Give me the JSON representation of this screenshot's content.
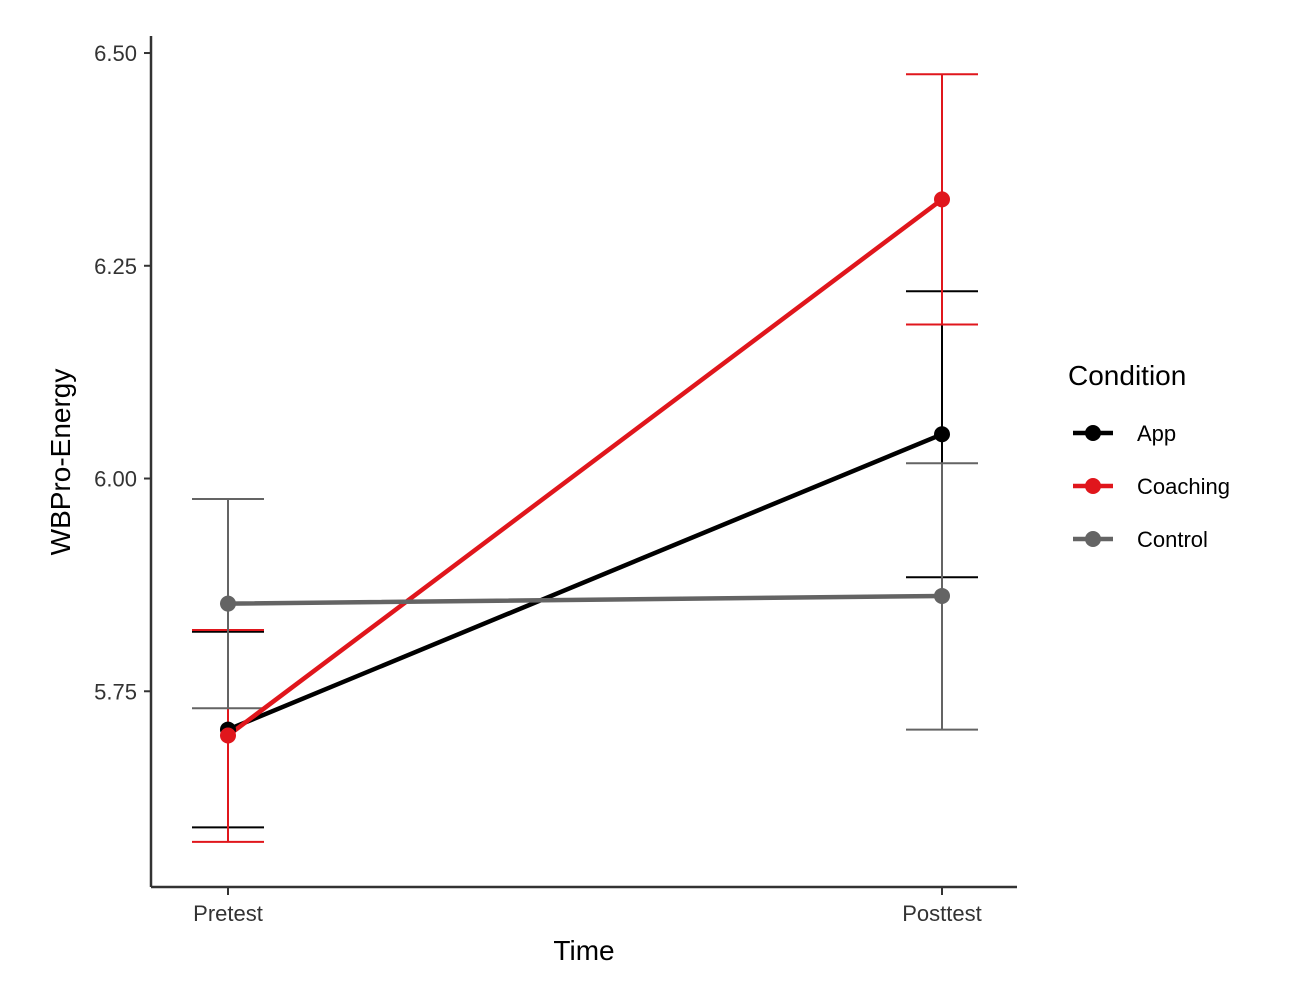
{
  "chart_data": {
    "type": "line",
    "xlabel": "Time",
    "ylabel": "WBPro-Energy",
    "categories": [
      "Pretest",
      "Posttest"
    ],
    "ylim": [
      5.52,
      6.52
    ],
    "yticks": [
      5.75,
      6.0,
      6.25,
      6.5
    ],
    "ytick_labels": [
      "5.75",
      "6.00",
      "6.25",
      "6.50"
    ],
    "grid": false,
    "legend": {
      "title": "Condition",
      "position": "right"
    },
    "series": [
      {
        "name": "App",
        "color": "#000000",
        "values": [
          5.705,
          6.052
        ],
        "error_low": [
          5.59,
          5.884
        ],
        "error_high": [
          5.82,
          6.22
        ]
      },
      {
        "name": "Coaching",
        "color": "#e0161c",
        "values": [
          5.698,
          6.328
        ],
        "error_low": [
          5.573,
          6.181
        ],
        "error_high": [
          5.822,
          6.475
        ]
      },
      {
        "name": "Control",
        "color": "#646464",
        "values": [
          5.853,
          5.862
        ],
        "error_low": [
          5.73,
          5.705
        ],
        "error_high": [
          5.976,
          6.018
        ]
      }
    ]
  }
}
